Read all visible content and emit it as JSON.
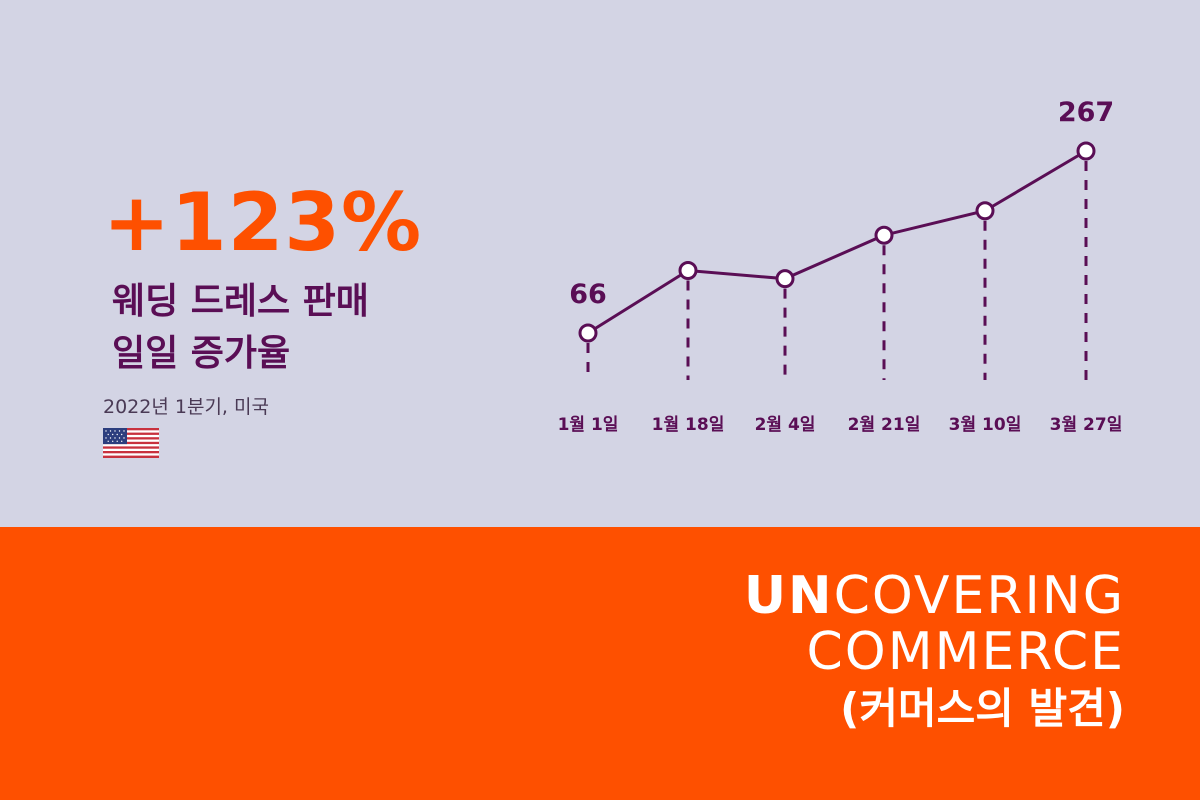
{
  "headline": "+123%",
  "description": [
    "웨딩 드레스 판매",
    "일일 증가율"
  ],
  "subtitle": "2022년 1분기, 미국",
  "flag_icon": "us-flag-icon",
  "colors": {
    "accent": "#fe5000",
    "primary": "#5a0e55",
    "background": "#d3d4e4"
  },
  "chart_data": {
    "type": "line",
    "categories": [
      "1월 1일",
      "1월 18일",
      "2월 4일",
      "2월 21일",
      "3월 10일",
      "3월 27일"
    ],
    "values": [
      66,
      135,
      126,
      174,
      201,
      267
    ],
    "data_labels": [
      {
        "index": 0,
        "text": "66"
      },
      {
        "index": 5,
        "text": "267"
      }
    ],
    "title": "",
    "xlabel": "",
    "ylabel": "",
    "grid": false
  },
  "brand": {
    "line1_bold": "UN",
    "line1_rest": "COVERING",
    "line2": "COMMERCE",
    "line3": "(커머스의 발견)"
  }
}
